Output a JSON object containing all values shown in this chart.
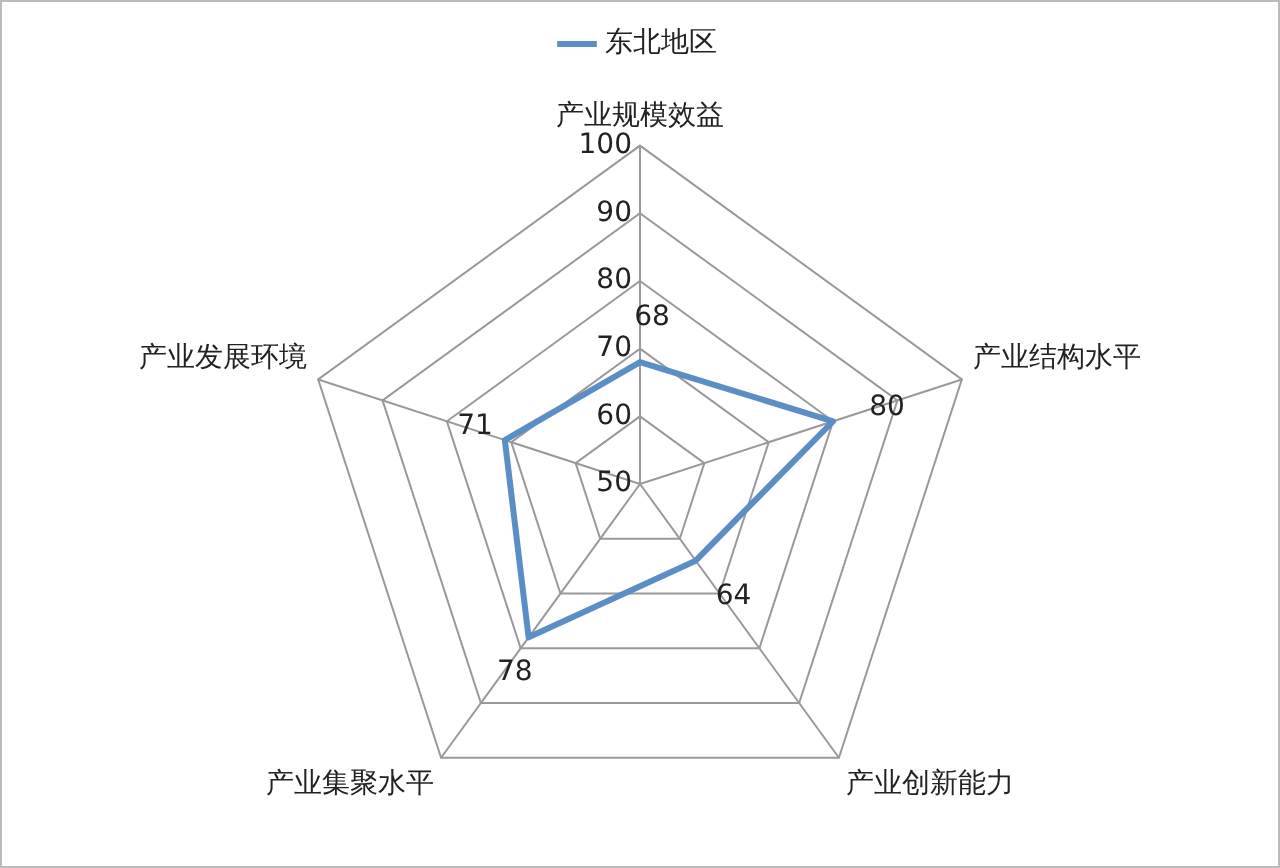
{
  "chart_data": {
    "type": "radar",
    "categories": [
      "产业规模效益",
      "产业结构水平",
      "产业创新能力",
      "产业集聚水平",
      "产业发展环境"
    ],
    "series": [
      {
        "name": "东北地区",
        "color": "#5b8ec4",
        "values": [
          68,
          80,
          64,
          78,
          71
        ]
      }
    ],
    "ylim": [
      50,
      100
    ],
    "yticks": [
      50,
      60,
      70,
      80,
      90,
      100
    ],
    "data_labels": true,
    "legend": "top",
    "marker": "none",
    "line_style": "solid",
    "grid": true
  }
}
